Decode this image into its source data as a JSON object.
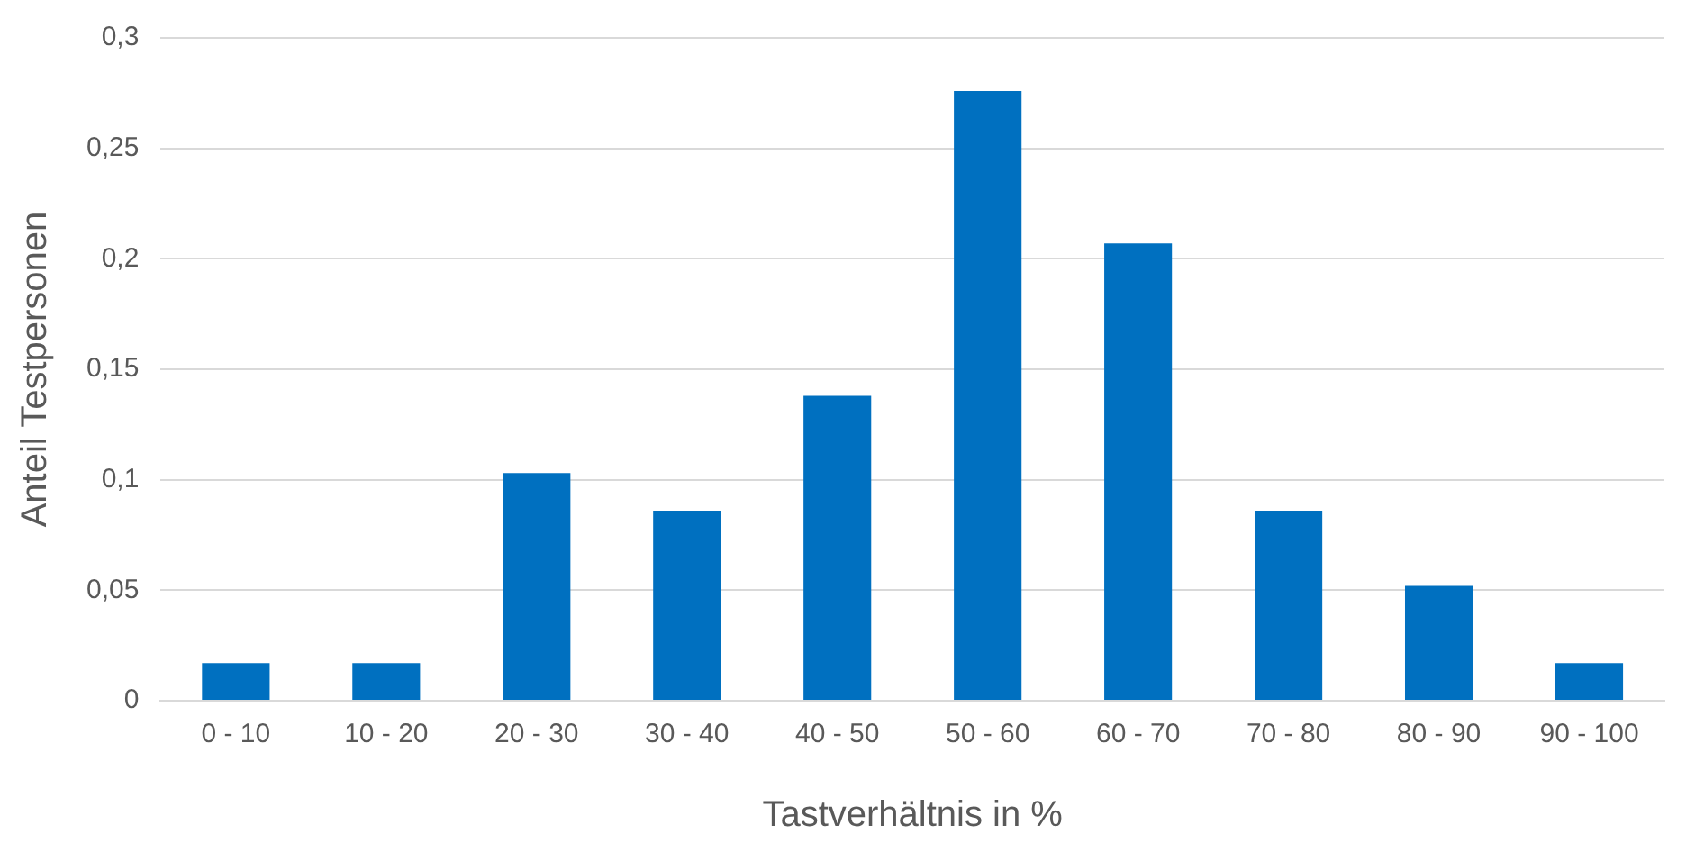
{
  "chart_data": {
    "type": "bar",
    "xlabel": "Tastverhältnis in %",
    "ylabel": "Anteil Testpersonen",
    "categories": [
      "0 - 10",
      "10 - 20",
      "20 - 30",
      "30 - 40",
      "40 - 50",
      "50 - 60",
      "60 - 70",
      "70 - 80",
      "80 - 90",
      "90 - 100"
    ],
    "values": [
      0.017,
      0.017,
      0.103,
      0.086,
      0.138,
      0.276,
      0.207,
      0.086,
      0.052,
      0.017
    ],
    "color": "#0070c0",
    "ylim": [
      0,
      0.3
    ],
    "yticks": [
      0,
      {
        "value": 0.05,
        "label": "0,05"
      },
      {
        "value": 0.1,
        "label": "0,1"
      },
      {
        "value": 0.15,
        "label": "0,15"
      },
      {
        "value": 0.2,
        "label": "0,2"
      },
      {
        "value": 0.25,
        "label": "0,25"
      },
      {
        "value": 0.3,
        "label": "0,3"
      }
    ],
    "grid": "y"
  }
}
